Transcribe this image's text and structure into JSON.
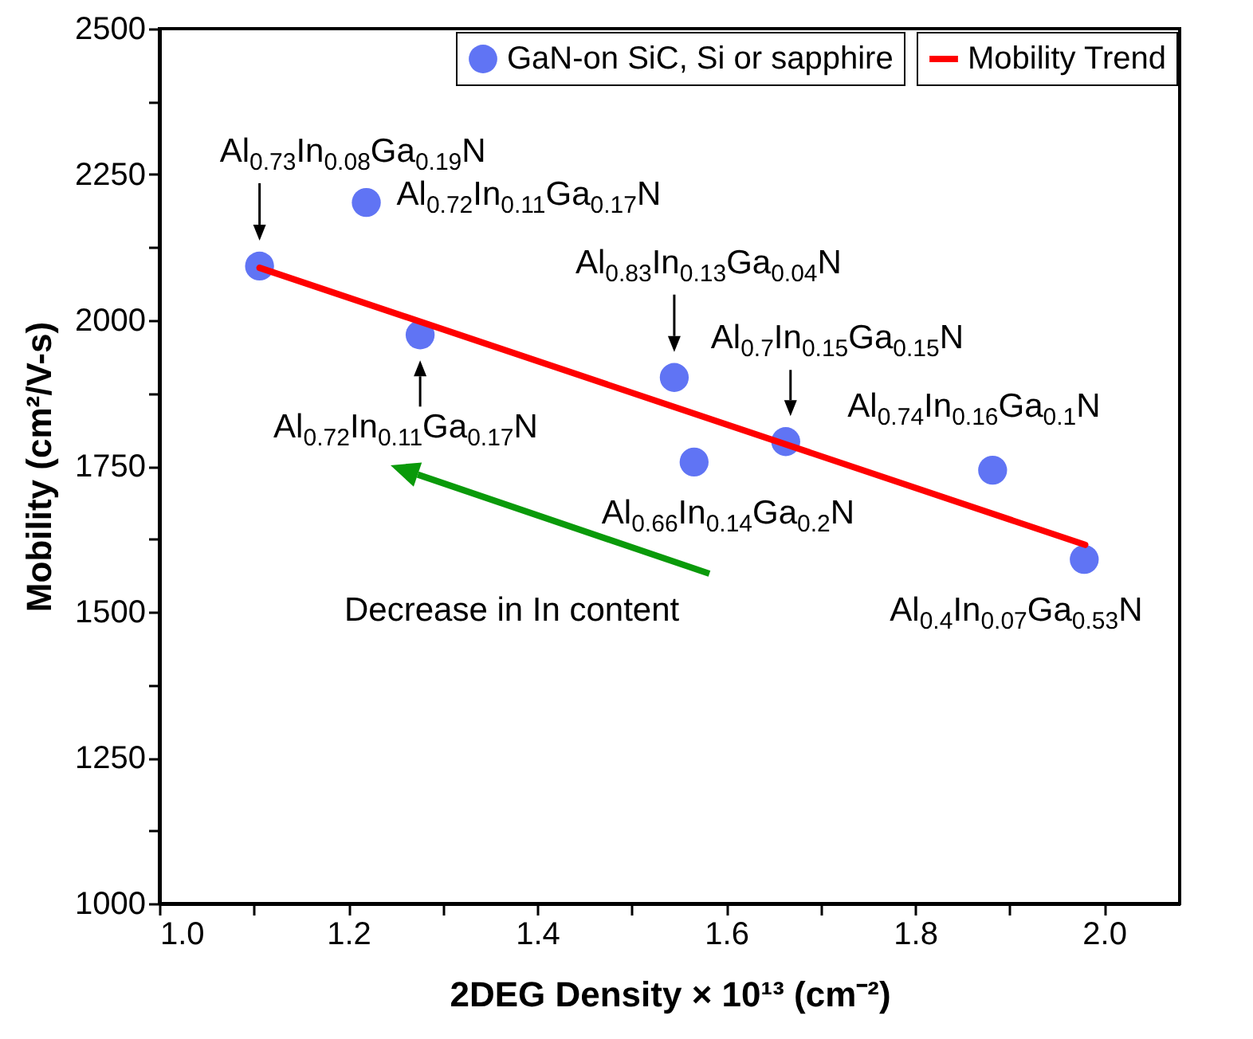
{
  "chart_data": {
    "type": "scatter",
    "xlabel": "2DEG Density × 10¹³ (cm⁻²)",
    "ylabel": "Mobility (cm²/V-s)",
    "xlim": [
      1.0,
      2.08
    ],
    "ylim": [
      1000,
      2500
    ],
    "xticks": [
      {
        "value": 1.0,
        "label": "1.0"
      },
      {
        "value": 1.1,
        "label": null
      },
      {
        "value": 1.2,
        "label": "1.2"
      },
      {
        "value": 1.3,
        "label": null
      },
      {
        "value": 1.4,
        "label": "1.4"
      },
      {
        "value": 1.5,
        "label": null
      },
      {
        "value": 1.6,
        "label": "1.6"
      },
      {
        "value": 1.7,
        "label": null
      },
      {
        "value": 1.8,
        "label": "1.8"
      },
      {
        "value": 1.9,
        "label": null
      },
      {
        "value": 2.0,
        "label": "2.0"
      }
    ],
    "yticks": [
      1000,
      {
        "value": 1125,
        "label": null
      },
      1250,
      {
        "value": 1375,
        "label": null
      },
      1500,
      {
        "value": 1625,
        "label": null
      },
      1750,
      {
        "value": 1875,
        "label": null
      },
      2000,
      {
        "value": 2125,
        "label": null
      },
      2250,
      {
        "value": 2375,
        "label": null
      },
      2500
    ],
    "series": [
      {
        "name": "GaN-on SiC, Si or sapphire",
        "marker": "circle",
        "color": "#6074f4",
        "x": [
          1.106,
          1.219,
          1.276,
          1.545,
          1.566,
          1.663,
          1.882,
          1.979
        ],
        "values": [
          2093,
          2202,
          1975,
          1902,
          1757,
          1792,
          1743,
          1590
        ]
      },
      {
        "name": "Mobility Trend",
        "type": "line",
        "color": "#ff0000",
        "x": [
          1.106,
          1.98
        ],
        "values": [
          2090,
          1615
        ]
      }
    ],
    "grid": false,
    "legend": "top right",
    "annotations": [
      {
        "text": "Al$_{0.73}$In$_{0.08}$Ga$_{0.19}$N",
        "x": 1.106,
        "y": 2093
      },
      {
        "text": "Al$_{0.72}$In$_{0.11}$Ga$_{0.17}$N",
        "x": 1.219,
        "y": 2202
      },
      {
        "text": "Al$_{0.83}$In$_{0.13}$Ga$_{0.04}$N",
        "x": 1.545,
        "y": 1902
      },
      {
        "text": "Al$_{0.7}$In$_{0.15}$Ga$_{0.15}$N",
        "x": 1.663,
        "y": 1792
      },
      {
        "text": "Al$_{0.74}$In$_{0.16}$Ga$_{0.1}$N",
        "x": 1.882,
        "y": 1743
      },
      {
        "text": "Al$_{0.72}$In$_{0.11}$Ga$_{0.17}$N",
        "x": 1.276,
        "y": 1975
      },
      {
        "text": "Al$_{0.66}$In$_{0.14}$Ga$_{0.2}$N",
        "x": 1.566,
        "y": 1757
      },
      {
        "text": "Al$_{0.4}$In$_{0.07}$Ga$_{0.53}$N",
        "x": 1.979,
        "y": 1590
      },
      "Decrease in In content"
    ]
  }
}
